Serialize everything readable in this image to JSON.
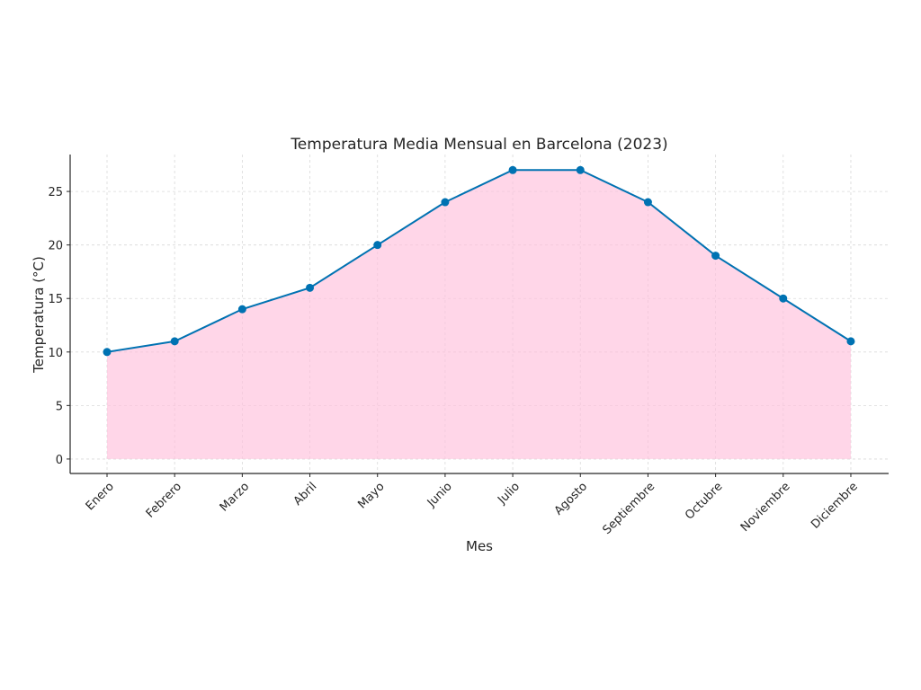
{
  "chart_data": {
    "type": "area",
    "title": "Temperatura Media Mensual en Barcelona (2023)",
    "xlabel": "Mes",
    "ylabel": "Temperatura (°C)",
    "categories": [
      "Enero",
      "Febrero",
      "Marzo",
      "Abril",
      "Mayo",
      "Junio",
      "Julio",
      "Agosto",
      "Septiembre",
      "Octubre",
      "Noviembre",
      "Diciembre"
    ],
    "values": [
      10,
      11,
      14,
      16,
      20,
      24,
      27,
      27,
      24,
      19,
      15,
      11
    ],
    "yticks": [
      0,
      5,
      10,
      15,
      20,
      25
    ],
    "ylim": [
      -1.35,
      28.45
    ],
    "grid": true,
    "line_color": "#0072B2",
    "fill_color": "#FFC0DB",
    "markers": true
  }
}
